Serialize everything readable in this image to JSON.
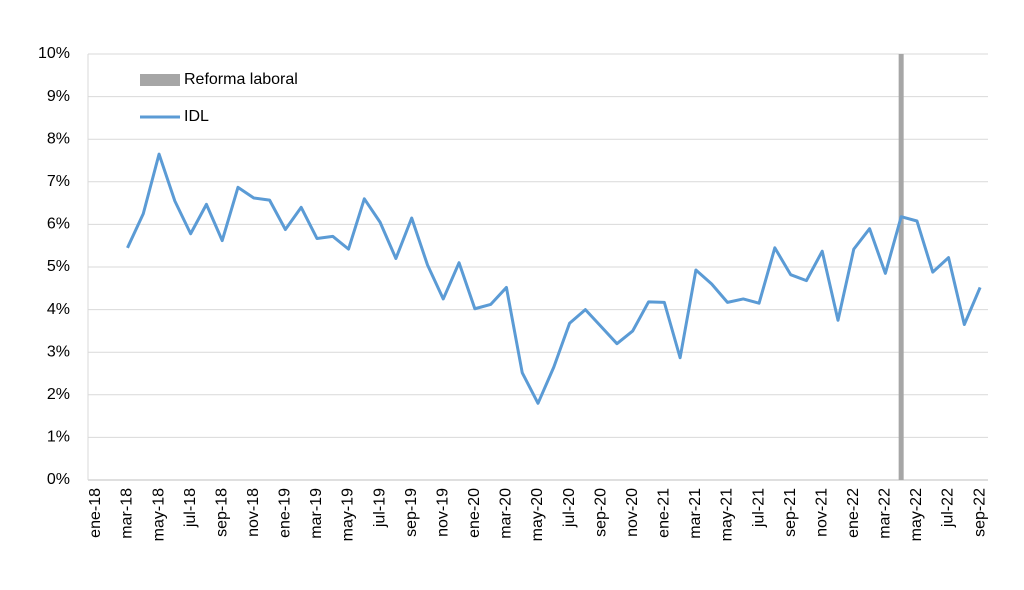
{
  "chart_data": {
    "type": "line",
    "categories": [
      "ene-18",
      null,
      "mar-18",
      null,
      "may-18",
      null,
      "jul-18",
      null,
      "sep-18",
      null,
      "nov-18",
      null,
      "ene-19",
      null,
      "mar-19",
      null,
      "may-19",
      null,
      "jul-19",
      null,
      "sep-19",
      null,
      "nov-19",
      null,
      "ene-20",
      null,
      "mar-20",
      null,
      "may-20",
      null,
      "jul-20",
      null,
      "sep-20",
      null,
      "nov-20",
      null,
      "ene-21",
      null,
      "mar-21",
      null,
      "may-21",
      null,
      "jul-21",
      null,
      "sep-21",
      null,
      "nov-21",
      null,
      "ene-22",
      null,
      "mar-22",
      null,
      "may-22",
      null,
      "jul-22",
      null,
      "sep-22"
    ],
    "series": [
      {
        "name": "Reforma laboral",
        "type": "bar",
        "color": "#a6a6a6",
        "values": [
          null,
          null,
          null,
          null,
          null,
          null,
          null,
          null,
          null,
          null,
          null,
          null,
          null,
          null,
          null,
          null,
          null,
          null,
          null,
          null,
          null,
          null,
          null,
          null,
          null,
          null,
          null,
          null,
          null,
          null,
          null,
          null,
          null,
          null,
          null,
          null,
          null,
          null,
          null,
          null,
          null,
          null,
          null,
          null,
          null,
          null,
          null,
          null,
          null,
          null,
          null,
          10,
          null,
          null,
          null,
          null,
          null
        ]
      },
      {
        "name": "IDL",
        "type": "line",
        "color": "#5b9bd5",
        "values": [
          null,
          null,
          5.45,
          6.25,
          7.65,
          6.55,
          5.78,
          6.47,
          5.62,
          6.87,
          6.62,
          6.57,
          5.88,
          6.4,
          5.67,
          5.72,
          5.42,
          6.6,
          6.05,
          5.2,
          6.15,
          5.05,
          4.25,
          5.1,
          4.02,
          4.12,
          4.52,
          2.52,
          1.8,
          2.65,
          3.68,
          4.0,
          3.6,
          3.2,
          3.5,
          4.18,
          4.17,
          2.87,
          4.93,
          4.6,
          4.17,
          4.25,
          4.15,
          5.45,
          4.82,
          4.68,
          5.37,
          3.75,
          5.42,
          5.9,
          4.85,
          6.18,
          6.08,
          4.88,
          5.22,
          3.65,
          4.52
        ]
      }
    ],
    "ylim": [
      0,
      10
    ],
    "yticks": [
      {
        "value": 0,
        "label": "0%"
      },
      {
        "value": 1,
        "label": "1%"
      },
      {
        "value": 2,
        "label": "2%"
      },
      {
        "value": 3,
        "label": "3%"
      },
      {
        "value": 4,
        "label": "4%"
      },
      {
        "value": 5,
        "label": "5%"
      },
      {
        "value": 6,
        "label": "6%"
      },
      {
        "value": 7,
        "label": "7%"
      },
      {
        "value": 8,
        "label": "8%"
      },
      {
        "value": 9,
        "label": "9%"
      },
      {
        "value": 10,
        "label": "10%"
      }
    ],
    "grid": true
  }
}
